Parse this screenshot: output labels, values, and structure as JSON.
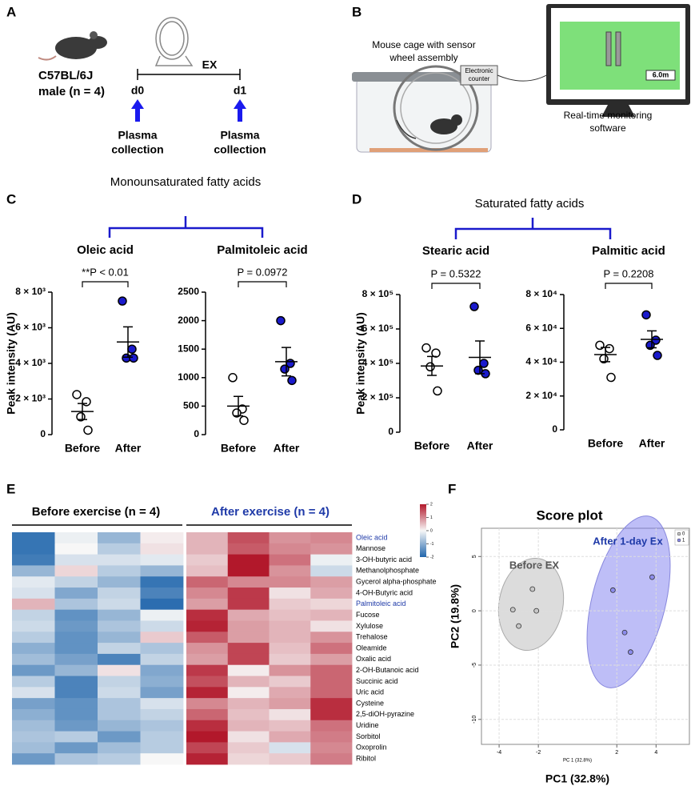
{
  "panel_labels": [
    "A",
    "B",
    "C",
    "D",
    "E",
    "F"
  ],
  "panel_a": {
    "strain": "C57BL/6J",
    "group": "male (n = 4)",
    "exercise": "EX",
    "days": [
      "d0",
      "d1"
    ],
    "collection": [
      [
        "Plasma",
        "collection"
      ],
      [
        "Plasma",
        "collection"
      ]
    ]
  },
  "panel_b": {
    "cage_label": [
      "Mouse cage with sensor",
      "wheel assembly"
    ],
    "counter_label": [
      "Electronic",
      "counter"
    ],
    "software_label": [
      "Real-time monitoring",
      "software"
    ],
    "screen_value": "6.0m"
  },
  "panel_c_title": "Monounsaturated fatty acids",
  "panel_d_title": "Saturated fatty acids",
  "panel_e": {
    "before_header": "Before exercise (n = 4)",
    "after_header": "After exercise (n = 4)"
  },
  "chart_data": [
    {
      "type": "dotplot",
      "title": "Oleic acid",
      "ylabel": "Peak intensity (AU)",
      "annotation": "**P < 0.01",
      "categories": [
        "Before",
        "After"
      ],
      "groups": [
        {
          "fill": "#ffffff",
          "values": [
            2250,
            1850,
            1000,
            250
          ],
          "mean": 1300,
          "sem": 450
        },
        {
          "fill": "#1a1acc",
          "values": [
            7500,
            4800,
            4300,
            4300
          ],
          "mean": 5200,
          "sem": 850
        }
      ],
      "ylim": [
        0,
        8000
      ],
      "yticks": [
        0,
        {
          "value": 2000,
          "label": "2 × 10³"
        },
        {
          "value": 4000,
          "label": "4 × 10³"
        },
        {
          "value": 6000,
          "label": "6 × 10³"
        },
        {
          "value": 8000,
          "label": "8 × 10³"
        }
      ]
    },
    {
      "type": "dotplot",
      "title": "Palmitoleic acid",
      "annotation": "P = 0.0972",
      "categories": [
        "Before",
        "After"
      ],
      "groups": [
        {
          "fill": "#ffffff",
          "values": [
            1000,
            450,
            380,
            250
          ],
          "mean": 500,
          "sem": 170
        },
        {
          "fill": "#1a1acc",
          "values": [
            2000,
            1250,
            1150,
            950
          ],
          "mean": 1280,
          "sem": 250
        }
      ],
      "ylim": [
        0,
        2500
      ],
      "yticks": [
        0,
        500,
        1000,
        1500,
        2000,
        2500
      ]
    },
    {
      "type": "dotplot",
      "title": "Stearic acid",
      "ylabel": "Peak intensity (AU)",
      "annotation": "P = 0.5322",
      "categories": [
        "Before",
        "After"
      ],
      "groups": [
        {
          "fill": "#ffffff",
          "values": [
            490000,
            460000,
            380000,
            240000
          ],
          "mean": 385000,
          "sem": 55000
        },
        {
          "fill": "#1a1acc",
          "values": [
            730000,
            400000,
            360000,
            340000
          ],
          "mean": 435000,
          "sem": 95000
        }
      ],
      "ylim": [
        0,
        800000
      ],
      "yticks": [
        0,
        {
          "value": 200000,
          "label": "2 × 10⁵"
        },
        {
          "value": 400000,
          "label": "4 × 10⁵"
        },
        {
          "value": 600000,
          "label": "6 × 10⁵"
        },
        {
          "value": 800000,
          "label": "8 × 10⁵"
        }
      ]
    },
    {
      "type": "dotplot",
      "title": "Palmitic acid",
      "annotation": "P = 0.2208",
      "categories": [
        "Before",
        "After"
      ],
      "groups": [
        {
          "fill": "#ffffff",
          "values": [
            50000,
            48000,
            42000,
            31000
          ],
          "mean": 44500,
          "sem": 4200
        },
        {
          "fill": "#1a1acc",
          "values": [
            68000,
            53000,
            50000,
            44000
          ],
          "mean": 53500,
          "sem": 5000
        }
      ],
      "ylim": [
        0,
        80000
      ],
      "yticks": [
        0,
        {
          "value": 20000,
          "label": "2 × 10⁴"
        },
        {
          "value": 40000,
          "label": "4 × 10⁴"
        },
        {
          "value": 60000,
          "label": "6 × 10⁴"
        },
        {
          "value": 80000,
          "label": "8 × 10⁴"
        }
      ]
    },
    {
      "type": "heatmap",
      "zlim": [
        -2,
        2
      ],
      "colors": [
        "#2166ac",
        "#f7f7f7",
        "#b2182b"
      ],
      "colorbar_ticks": [
        2,
        1,
        0,
        -1,
        -2
      ],
      "highlight_rows": [
        0,
        6
      ],
      "highlight_color": "#1f3aa8",
      "rows": [
        "Oleic acid",
        "Mannose",
        "3-OH-butyric acid",
        "Methanolphosphate",
        "Gycerol alpha-phosphate",
        "4-OH-Butyric acid",
        "Palmitoleic acid",
        "Fucose",
        "Xylulose",
        "Trehalose",
        "Oleamide",
        "Oxalic acid",
        "2-OH-Butanoic acid",
        "Succinic acid",
        "Uric acid",
        "Cysteine",
        "2,5-diOH-pyrazine",
        "Uridine",
        "Sorbitol",
        "Oxoprolin",
        "Ribitol"
      ],
      "values": [
        [
          -1.8,
          -0.1,
          -0.9,
          0.1,
          0.6,
          1.5,
          0.9,
          1.0
        ],
        [
          -1.8,
          0.0,
          -0.6,
          0.2,
          0.6,
          1.4,
          1.0,
          0.9
        ],
        [
          -1.7,
          -0.3,
          -0.3,
          -0.2,
          0.4,
          2.0,
          1.2,
          -0.1
        ],
        [
          -0.9,
          0.3,
          -0.6,
          -0.9,
          0.5,
          2.0,
          0.9,
          -0.4
        ],
        [
          -0.2,
          -0.5,
          -0.9,
          -1.8,
          1.3,
          1.0,
          1.0,
          0.8
        ],
        [
          -0.3,
          -1.1,
          -0.5,
          -1.6,
          1.0,
          1.7,
          0.2,
          0.7
        ],
        [
          0.6,
          -0.7,
          -0.4,
          -1.9,
          0.8,
          1.7,
          0.4,
          0.3
        ],
        [
          -0.5,
          -1.4,
          -0.9,
          -0.1,
          1.8,
          0.7,
          0.5,
          0.6
        ],
        [
          -0.4,
          -1.3,
          -0.7,
          -0.4,
          1.9,
          0.8,
          0.6,
          0.2
        ],
        [
          -0.6,
          -1.4,
          -0.9,
          0.4,
          1.4,
          0.8,
          0.6,
          0.9
        ],
        [
          -1.0,
          -1.4,
          -0.5,
          -0.7,
          0.9,
          1.6,
          0.5,
          1.2
        ],
        [
          -0.8,
          -1.2,
          -1.6,
          -0.5,
          0.8,
          1.6,
          0.4,
          0.8
        ],
        [
          -1.3,
          -0.9,
          0.2,
          -1.1,
          1.7,
          0.1,
          0.9,
          1.3
        ],
        [
          -0.6,
          -1.6,
          -0.5,
          -1.0,
          1.5,
          0.6,
          0.4,
          1.3
        ],
        [
          -0.3,
          -1.6,
          -0.4,
          -1.2,
          1.9,
          0.1,
          0.7,
          1.3
        ],
        [
          -1.2,
          -1.4,
          -0.7,
          -0.3,
          1.0,
          0.6,
          0.8,
          1.8
        ],
        [
          -1.0,
          -1.4,
          -0.7,
          -0.5,
          1.3,
          0.5,
          0.2,
          1.8
        ],
        [
          -0.8,
          -1.3,
          -0.9,
          -0.7,
          1.8,
          0.6,
          0.5,
          1.2
        ],
        [
          -0.7,
          -0.6,
          -1.3,
          -0.6,
          2.0,
          0.2,
          0.7,
          1.1
        ],
        [
          -0.8,
          -1.3,
          -0.8,
          -0.6,
          1.6,
          0.4,
          -0.3,
          1.0
        ],
        [
          -1.3,
          -0.7,
          -0.6,
          0.0,
          1.9,
          0.3,
          0.4,
          1.1
        ]
      ]
    },
    {
      "type": "scatter",
      "title": "Score plot",
      "xlabel": "PC1 (32.8%)",
      "axis_caption": "PC 1 (32.8%)",
      "ylabel": "PC2 (19.8%)",
      "group_labels": [
        "Before EX",
        "After 1-day Ex"
      ],
      "series": [
        {
          "name": "0",
          "color": "#c8c8c8",
          "x": [
            -2.3,
            -3.3,
            -2.1,
            -3.0
          ],
          "values": [
            2.0,
            0.1,
            0.0,
            -1.4
          ]
        },
        {
          "name": "1",
          "color": "#8c8cec",
          "x": [
            1.8,
            3.8,
            2.4,
            2.7
          ],
          "values": [
            1.9,
            3.1,
            -2.0,
            -3.8
          ]
        }
      ],
      "xlim": [
        -4.9,
        5.7
      ],
      "ylim": [
        -12.3,
        7.6
      ],
      "xticks": [
        -4,
        -2,
        2,
        4
      ],
      "yticks": [
        5,
        0,
        -5,
        -10
      ],
      "grid": true,
      "legend": "upper right"
    }
  ]
}
